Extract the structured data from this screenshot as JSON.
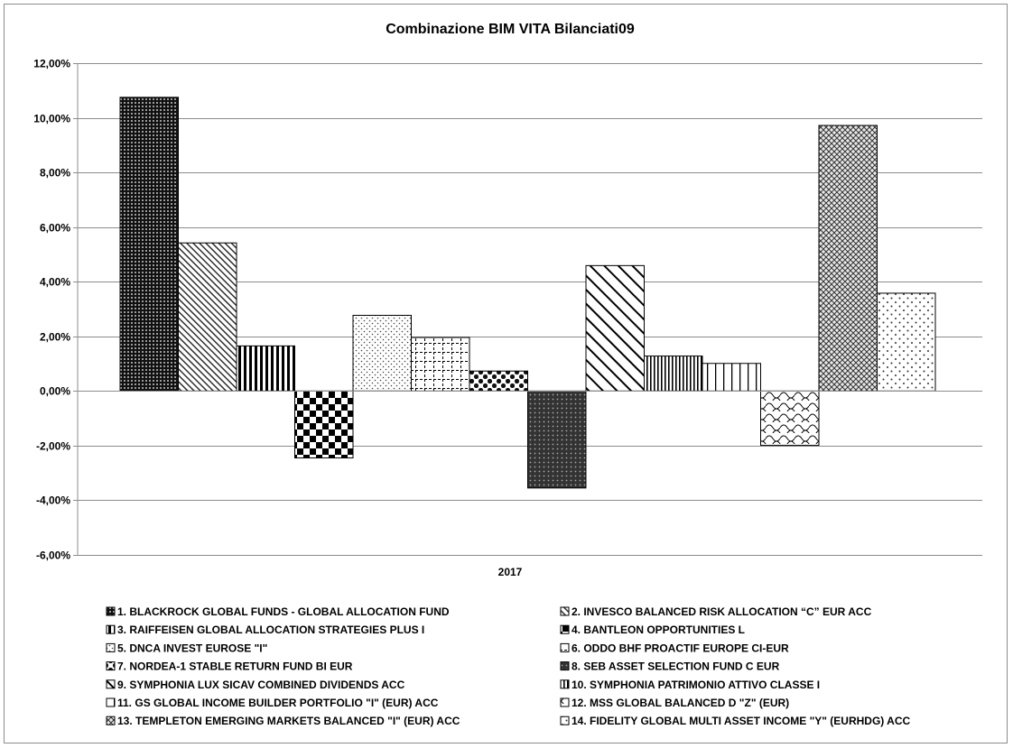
{
  "chart_data": {
    "type": "bar",
    "title": "Combinazione BIM VITA Bilanciati09",
    "xlabel": "",
    "ylabel": "",
    "categories": [
      "2017"
    ],
    "ylim": [
      -0.06,
      0.12
    ],
    "y_ticks": [
      -0.06,
      -0.04,
      -0.02,
      0,
      0.02,
      0.04,
      0.06,
      0.08,
      0.1,
      0.12
    ],
    "y_tick_labels": [
      "-6,00%",
      "-4,00%",
      "-2,00%",
      "0,00%",
      "2,00%",
      "4,00%",
      "6,00%",
      "8,00%",
      "10,00%",
      "12,00%"
    ],
    "grid": true,
    "legend_position": "bottom",
    "series": [
      {
        "name": "1. BLACKROCK GLOBAL FUNDS - GLOBAL ALLOCATION FUND",
        "values": [
          0.1075
        ],
        "pattern": "dense-dots-dark"
      },
      {
        "name": "2. INVESCO BALANCED RISK ALLOCATION “C” EUR ACC",
        "values": [
          0.0542
        ],
        "pattern": "diagonal-lines-fine"
      },
      {
        "name": "3. RAIFFEISEN GLOBAL ALLOCATION STRATEGIES PLUS I",
        "values": [
          0.0165
        ],
        "pattern": "vertical-lines-bold"
      },
      {
        "name": "4. BANTLEON OPPORTUNITIES L",
        "values": [
          -0.0245
        ],
        "pattern": "checkerboard-large"
      },
      {
        "name": "5. DNCA INVEST EUROSE \"I\"",
        "values": [
          0.0277
        ],
        "pattern": "sparse-dots"
      },
      {
        "name": "6. ODDO BHF PROACTIF EUROPE CI-EUR",
        "values": [
          0.0196
        ],
        "pattern": "grid-dashed"
      },
      {
        "name": "7. NORDEA-1 STABLE RETURN FUND BI EUR",
        "values": [
          0.0073
        ],
        "pattern": "dark-spheres"
      },
      {
        "name": "8. SEB ASSET SELECTION FUND C EUR",
        "values": [
          -0.0355
        ],
        "pattern": "crosshatch-dark"
      },
      {
        "name": "9. SYMPHONIA LUX SICAV COMBINED DIVIDENDS ACC",
        "values": [
          0.0459
        ],
        "pattern": "diagonal-lines-wide"
      },
      {
        "name": "10. SYMPHONIA PATRIMONIO ATTIVO CLASSE I",
        "values": [
          0.0128
        ],
        "pattern": "vertical-lines-fine"
      },
      {
        "name": "11. GS GLOBAL INCOME BUILDER PORTFOLIO \"I\" (EUR) ACC",
        "values": [
          0.0101
        ],
        "pattern": "vertical-lines-wide"
      },
      {
        "name": "12. MSS GLOBAL BALANCED D \"Z\" (EUR)",
        "values": [
          -0.0199
        ],
        "pattern": "scales"
      },
      {
        "name": "13. TEMPLETON EMERGING MARKETS BALANCED \"I\" (EUR) ACC",
        "values": [
          0.0972
        ],
        "pattern": "diamond-crosshatch"
      },
      {
        "name": "14. FIDELITY GLOBAL MULTI ASSET INCOME \"Y\" (EURHDG) ACC",
        "values": [
          0.0358
        ],
        "pattern": "sparse-dots-large"
      }
    ]
  }
}
